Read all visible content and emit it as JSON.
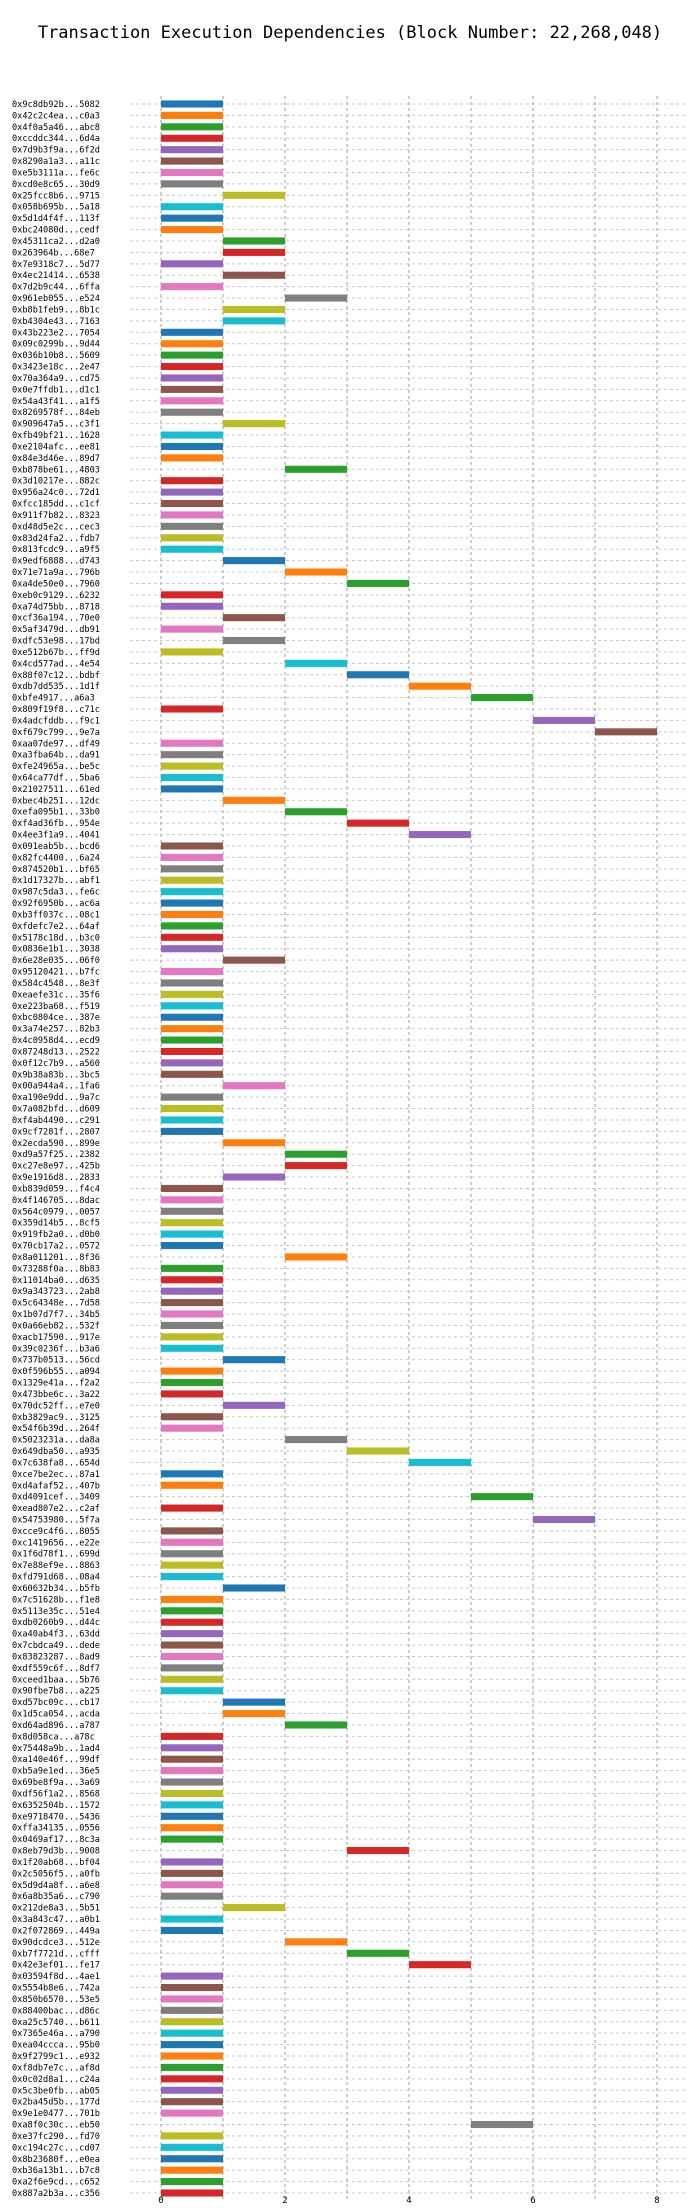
{
  "chart_data": {
    "type": "bar",
    "orientation": "horizontal",
    "title": "Transaction Execution Dependencies (Block Number: 22,268,048)",
    "xlabel": "",
    "ylabel": "",
    "xlim": [
      -0.5,
      8.5
    ],
    "xticks": [
      "0",
      "2",
      "4",
      "6",
      "8"
    ],
    "grid": true,
    "colors": [
      "#1f77b4",
      "#ff7f0e",
      "#2ca02c",
      "#d62728",
      "#9467bd",
      "#8c564b",
      "#e377c2",
      "#7f7f7f",
      "#bcbd22",
      "#17becf"
    ],
    "bars": [
      {
        "label": "0x9c8db92b...5082",
        "start": 0,
        "end": 1
      },
      {
        "label": "0x42c2c4ea...c0a3",
        "start": 0,
        "end": 1
      },
      {
        "label": "0x4f0a5a46...abc8",
        "start": 0,
        "end": 1
      },
      {
        "label": "0xccddc344...6d4a",
        "start": 0,
        "end": 1
      },
      {
        "label": "0x7d9b3f9a...6f2d",
        "start": 0,
        "end": 1
      },
      {
        "label": "0x8290a1a3...a11c",
        "start": 0,
        "end": 1
      },
      {
        "label": "0xe5b3111a...fe6c",
        "start": 0,
        "end": 1
      },
      {
        "label": "0xcd0e8c65...30d9",
        "start": 0,
        "end": 1
      },
      {
        "label": "0x25fcc8b6...9715",
        "start": 1,
        "end": 2
      },
      {
        "label": "0x058b695b...5a18",
        "start": 0,
        "end": 1
      },
      {
        "label": "0x5d1d4f4f...113f",
        "start": 0,
        "end": 1
      },
      {
        "label": "0xbc24080d...cedf",
        "start": 0,
        "end": 1
      },
      {
        "label": "0x45311ca2...d2a0",
        "start": 1,
        "end": 2
      },
      {
        "label": "0x263964b...68e7",
        "start": 1,
        "end": 2
      },
      {
        "label": "0x7e9318c7...5d77",
        "start": 0,
        "end": 1
      },
      {
        "label": "0x4ec21414...6538",
        "start": 1,
        "end": 2
      },
      {
        "label": "0x7d2b9c44...6ffa",
        "start": 0,
        "end": 1
      },
      {
        "label": "0x961eb055...e524",
        "start": 2,
        "end": 3
      },
      {
        "label": "0xb8b1feb9...8b1c",
        "start": 1,
        "end": 2
      },
      {
        "label": "0xb4304e43...7163",
        "start": 1,
        "end": 2
      },
      {
        "label": "0x43b223e2...7054",
        "start": 0,
        "end": 1
      },
      {
        "label": "0x09c0299b...9d44",
        "start": 0,
        "end": 1
      },
      {
        "label": "0x036b10b8...5609",
        "start": 0,
        "end": 1
      },
      {
        "label": "0x3423e18c...2e47",
        "start": 0,
        "end": 1
      },
      {
        "label": "0x70a364a9...cd75",
        "start": 0,
        "end": 1
      },
      {
        "label": "0x0e7ffdb1...d1c1",
        "start": 0,
        "end": 1
      },
      {
        "label": "0x54a43f41...a1f5",
        "start": 0,
        "end": 1
      },
      {
        "label": "0x8269578f...84eb",
        "start": 0,
        "end": 1
      },
      {
        "label": "0x909647a5...c3f1",
        "start": 1,
        "end": 2
      },
      {
        "label": "0xfb49bf21...1628",
        "start": 0,
        "end": 1
      },
      {
        "label": "0xe2104afc...ee81",
        "start": 0,
        "end": 1
      },
      {
        "label": "0x84e3d46e...89d7",
        "start": 0,
        "end": 1
      },
      {
        "label": "0xb878be61...4803",
        "start": 2,
        "end": 3
      },
      {
        "label": "0x3d10217e...882c",
        "start": 0,
        "end": 1
      },
      {
        "label": "0x956a24c0...72d1",
        "start": 0,
        "end": 1
      },
      {
        "label": "0xfcc185dd...c1cf",
        "start": 0,
        "end": 1
      },
      {
        "label": "0x911f7b82...8323",
        "start": 0,
        "end": 1
      },
      {
        "label": "0xd48d5e2c...cec3",
        "start": 0,
        "end": 1
      },
      {
        "label": "0x83d24fa2...fdb7",
        "start": 0,
        "end": 1
      },
      {
        "label": "0x813fcdc9...a9f5",
        "start": 0,
        "end": 1
      },
      {
        "label": "0x9edf6888...d743",
        "start": 1,
        "end": 2
      },
      {
        "label": "0x71e71a9a...796b",
        "start": 2,
        "end": 3
      },
      {
        "label": "0xa4de50e0...7960",
        "start": 3,
        "end": 4
      },
      {
        "label": "0xeb0c9129...6232",
        "start": 0,
        "end": 1
      },
      {
        "label": "0xa74d75bb...8718",
        "start": 0,
        "end": 1
      },
      {
        "label": "0xcf36a194...70e0",
        "start": 1,
        "end": 2
      },
      {
        "label": "0x5af3479d...db91",
        "start": 0,
        "end": 1
      },
      {
        "label": "0xdfc53e98...17bd",
        "start": 1,
        "end": 2
      },
      {
        "label": "0xe512b67b...ff9d",
        "start": 0,
        "end": 1
      },
      {
        "label": "0x4cd577ad...4e54",
        "start": 2,
        "end": 3
      },
      {
        "label": "0x88f07c12...bdbf",
        "start": 3,
        "end": 4
      },
      {
        "label": "0xdb7dd535...1d1f",
        "start": 4,
        "end": 5
      },
      {
        "label": "0xbfe4917...a6a3",
        "start": 5,
        "end": 6
      },
      {
        "label": "0x809f19f8...c71c",
        "start": 0,
        "end": 1
      },
      {
        "label": "0x4adcfddb...f9c1",
        "start": 6,
        "end": 7
      },
      {
        "label": "0xf679c799...9e7a",
        "start": 7,
        "end": 8
      },
      {
        "label": "0xaa07de97...df49",
        "start": 0,
        "end": 1
      },
      {
        "label": "0xa3fba64b...da91",
        "start": 0,
        "end": 1
      },
      {
        "label": "0xfe24965a...be5c",
        "start": 0,
        "end": 1
      },
      {
        "label": "0x64ca77df...5ba6",
        "start": 0,
        "end": 1
      },
      {
        "label": "0x21027511...61ed",
        "start": 0,
        "end": 1
      },
      {
        "label": "0xbec4b251...12dc",
        "start": 1,
        "end": 2
      },
      {
        "label": "0xefa095b1...33b0",
        "start": 2,
        "end": 3
      },
      {
        "label": "0xf4ad36fb...954e",
        "start": 3,
        "end": 4
      },
      {
        "label": "0x4ee3f1a9...4041",
        "start": 4,
        "end": 5
      },
      {
        "label": "0x091eab5b...bcd6",
        "start": 0,
        "end": 1
      },
      {
        "label": "0x82fc4400...6a24",
        "start": 0,
        "end": 1
      },
      {
        "label": "0x874520b1...bf65",
        "start": 0,
        "end": 1
      },
      {
        "label": "0x1d17327b...abf1",
        "start": 0,
        "end": 1
      },
      {
        "label": "0x987c5da3...fe6c",
        "start": 0,
        "end": 1
      },
      {
        "label": "0x92f6950b...ac6a",
        "start": 0,
        "end": 1
      },
      {
        "label": "0xb3ff037c...08c1",
        "start": 0,
        "end": 1
      },
      {
        "label": "0xfdefc7e2...64af",
        "start": 0,
        "end": 1
      },
      {
        "label": "0x5178c18d...b3c0",
        "start": 0,
        "end": 1
      },
      {
        "label": "0x0836e1b1...3038",
        "start": 0,
        "end": 1
      },
      {
        "label": "0x6e28e035...06f0",
        "start": 1,
        "end": 2
      },
      {
        "label": "0x95120421...b7fc",
        "start": 0,
        "end": 1
      },
      {
        "label": "0x584c4548...8e3f",
        "start": 0,
        "end": 1
      },
      {
        "label": "0xeaefe31c...35f6",
        "start": 0,
        "end": 1
      },
      {
        "label": "0xe223ba68...f519",
        "start": 0,
        "end": 1
      },
      {
        "label": "0xbc0804ce...387e",
        "start": 0,
        "end": 1
      },
      {
        "label": "0x3a74e257...82b3",
        "start": 0,
        "end": 1
      },
      {
        "label": "0x4c0958d4...ecd9",
        "start": 0,
        "end": 1
      },
      {
        "label": "0x87248d13...2522",
        "start": 0,
        "end": 1
      },
      {
        "label": "0x0f12c7b9...a560",
        "start": 0,
        "end": 1
      },
      {
        "label": "0x9b38a83b...3bc5",
        "start": 0,
        "end": 1
      },
      {
        "label": "0x00a944a4...1fa6",
        "start": 1,
        "end": 2
      },
      {
        "label": "0xa190e9dd...9a7c",
        "start": 0,
        "end": 1
      },
      {
        "label": "0x7a082bfd...d609",
        "start": 0,
        "end": 1
      },
      {
        "label": "0xf4ab4490...c291",
        "start": 0,
        "end": 1
      },
      {
        "label": "0x9cf7281f...2807",
        "start": 0,
        "end": 1
      },
      {
        "label": "0x2ecda590...899e",
        "start": 1,
        "end": 2
      },
      {
        "label": "0xd9a57f25...2382",
        "start": 2,
        "end": 3
      },
      {
        "label": "0xc27e8e97...425b",
        "start": 2,
        "end": 3
      },
      {
        "label": "0x9e1916d8...2833",
        "start": 1,
        "end": 2
      },
      {
        "label": "0xb839d059...f4c4",
        "start": 0,
        "end": 1
      },
      {
        "label": "0x4f146705...8dac",
        "start": 0,
        "end": 1
      },
      {
        "label": "0x564c0979...0057",
        "start": 0,
        "end": 1
      },
      {
        "label": "0x359d14b5...8cf5",
        "start": 0,
        "end": 1
      },
      {
        "label": "0x919fb2a0...d0b0",
        "start": 0,
        "end": 1
      },
      {
        "label": "0x70cb17a2...0572",
        "start": 0,
        "end": 1
      },
      {
        "label": "0x8a011201...8f36",
        "start": 2,
        "end": 3
      },
      {
        "label": "0x73288f0a...8b83",
        "start": 0,
        "end": 1
      },
      {
        "label": "0x11014ba0...d635",
        "start": 0,
        "end": 1
      },
      {
        "label": "0x9a343723...2ab8",
        "start": 0,
        "end": 1
      },
      {
        "label": "0x5c64348e...7d58",
        "start": 0,
        "end": 1
      },
      {
        "label": "0x1b07d7f7...34b5",
        "start": 0,
        "end": 1
      },
      {
        "label": "0x0a66eb82...532f",
        "start": 0,
        "end": 1
      },
      {
        "label": "0xacb17590...917e",
        "start": 0,
        "end": 1
      },
      {
        "label": "0x39c0236f...b3a6",
        "start": 0,
        "end": 1
      },
      {
        "label": "0x737b0513...56cd",
        "start": 1,
        "end": 2
      },
      {
        "label": "0x0f596b55...a094",
        "start": 0,
        "end": 1
      },
      {
        "label": "0x1329e41a...f2a2",
        "start": 0,
        "end": 1
      },
      {
        "label": "0x473bbe6c...3a22",
        "start": 0,
        "end": 1
      },
      {
        "label": "0x70dc52ff...e7e0",
        "start": 1,
        "end": 2
      },
      {
        "label": "0xb3829ac9...3125",
        "start": 0,
        "end": 1
      },
      {
        "label": "0x54f6b39d...264f",
        "start": 0,
        "end": 1
      },
      {
        "label": "0x5023231a...da8a",
        "start": 2,
        "end": 3
      },
      {
        "label": "0x649dba50...a935",
        "start": 3,
        "end": 4
      },
      {
        "label": "0x7c638fa8...654d",
        "start": 4,
        "end": 5
      },
      {
        "label": "0xce7be2ec...87a1",
        "start": 0,
        "end": 1
      },
      {
        "label": "0xd4afaf52...407b",
        "start": 0,
        "end": 1
      },
      {
        "label": "0xd4091cef...3409",
        "start": 5,
        "end": 6
      },
      {
        "label": "0xead807e2...c2af",
        "start": 0,
        "end": 1
      },
      {
        "label": "0x54753980...5f7a",
        "start": 6,
        "end": 7
      },
      {
        "label": "0xcce9c4f6...8055",
        "start": 0,
        "end": 1
      },
      {
        "label": "0xc1419656...e22e",
        "start": 0,
        "end": 1
      },
      {
        "label": "0x1f6d78f1...699d",
        "start": 0,
        "end": 1
      },
      {
        "label": "0x7e88ef9e...8863",
        "start": 0,
        "end": 1
      },
      {
        "label": "0xfd791d68...08a4",
        "start": 0,
        "end": 1
      },
      {
        "label": "0x60632b34...b5fb",
        "start": 1,
        "end": 2
      },
      {
        "label": "0x7c51628b...f1e8",
        "start": 0,
        "end": 1
      },
      {
        "label": "0x5113e35c...51e4",
        "start": 0,
        "end": 1
      },
      {
        "label": "0xdb0260b9...d44c",
        "start": 0,
        "end": 1
      },
      {
        "label": "0xa40ab4f3...63dd",
        "start": 0,
        "end": 1
      },
      {
        "label": "0x7cbdca49...dede",
        "start": 0,
        "end": 1
      },
      {
        "label": "0x83823287...8ad9",
        "start": 0,
        "end": 1
      },
      {
        "label": "0xdf559c6f...8df7",
        "start": 0,
        "end": 1
      },
      {
        "label": "0xceed1baa...5b76",
        "start": 0,
        "end": 1
      },
      {
        "label": "0x90fbe7b8...a225",
        "start": 0,
        "end": 1
      },
      {
        "label": "0xd57bc09c...cb17",
        "start": 1,
        "end": 2
      },
      {
        "label": "0x1d5ca054...acda",
        "start": 1,
        "end": 2
      },
      {
        "label": "0xd64ad896...a787",
        "start": 2,
        "end": 3
      },
      {
        "label": "0x8d058ca...a78c",
        "start": 0,
        "end": 1
      },
      {
        "label": "0x75448a9b...1ad4",
        "start": 0,
        "end": 1
      },
      {
        "label": "0xa140e46f...99df",
        "start": 0,
        "end": 1
      },
      {
        "label": "0xb5a9e1ed...36e5",
        "start": 0,
        "end": 1
      },
      {
        "label": "0x69be8f9a...3a69",
        "start": 0,
        "end": 1
      },
      {
        "label": "0xdf56f1a2...8568",
        "start": 0,
        "end": 1
      },
      {
        "label": "0x6352504b...1572",
        "start": 0,
        "end": 1
      },
      {
        "label": "0xe9718470...5436",
        "start": 0,
        "end": 1
      },
      {
        "label": "0xffa34135...0556",
        "start": 0,
        "end": 1
      },
      {
        "label": "0x0469af17...8c3a",
        "start": 0,
        "end": 1
      },
      {
        "label": "0x8eb79d3b...9008",
        "start": 3,
        "end": 4
      },
      {
        "label": "0x1f20ab68...bf04",
        "start": 0,
        "end": 1
      },
      {
        "label": "0x2c5056f5...a0fb",
        "start": 0,
        "end": 1
      },
      {
        "label": "0x5d9d4a8f...a6e8",
        "start": 0,
        "end": 1
      },
      {
        "label": "0x6a8b35a6...c790",
        "start": 0,
        "end": 1
      },
      {
        "label": "0x212de8a3...5b51",
        "start": 1,
        "end": 2
      },
      {
        "label": "0x3a843c47...a0b1",
        "start": 0,
        "end": 1
      },
      {
        "label": "0x2f072869...449a",
        "start": 0,
        "end": 1
      },
      {
        "label": "0x90dcdce3...512e",
        "start": 2,
        "end": 3
      },
      {
        "label": "0xb7f7721d...cfff",
        "start": 3,
        "end": 4
      },
      {
        "label": "0x42e3ef01...fe17",
        "start": 4,
        "end": 5
      },
      {
        "label": "0x03594f8d...4ae1",
        "start": 0,
        "end": 1
      },
      {
        "label": "0x5554b8e6...742a",
        "start": 0,
        "end": 1
      },
      {
        "label": "0x850b6570...53e5",
        "start": 0,
        "end": 1
      },
      {
        "label": "0x88400bac...d86c",
        "start": 0,
        "end": 1
      },
      {
        "label": "0xa25c5740...b611",
        "start": 0,
        "end": 1
      },
      {
        "label": "0x7365e46a...a790",
        "start": 0,
        "end": 1
      },
      {
        "label": "0xea04ccca...95b0",
        "start": 0,
        "end": 1
      },
      {
        "label": "0x9f2799c1...e932",
        "start": 0,
        "end": 1
      },
      {
        "label": "0xf8db7e7c...af8d",
        "start": 0,
        "end": 1
      },
      {
        "label": "0x0c02d8a1...c24a",
        "start": 0,
        "end": 1
      },
      {
        "label": "0x5c3be0fb...ab05",
        "start": 0,
        "end": 1
      },
      {
        "label": "0x2ba45d5b...177d",
        "start": 0,
        "end": 1
      },
      {
        "label": "0x9e1e0477...701b",
        "start": 0,
        "end": 1
      },
      {
        "label": "0xa8f0c30c...eb50",
        "start": 5,
        "end": 6
      },
      {
        "label": "0xe37fc290...fd70",
        "start": 0,
        "end": 1
      },
      {
        "label": "0xc194c27c...cd07",
        "start": 0,
        "end": 1
      },
      {
        "label": "0x8b23680f...e0ea",
        "start": 0,
        "end": 1
      },
      {
        "label": "0xb36a13b1...b7c8",
        "start": 0,
        "end": 1
      },
      {
        "label": "0xa2f6e9cd...c652",
        "start": 0,
        "end": 1
      },
      {
        "label": "0x887a2b3a...c356",
        "start": 0,
        "end": 1
      }
    ]
  }
}
